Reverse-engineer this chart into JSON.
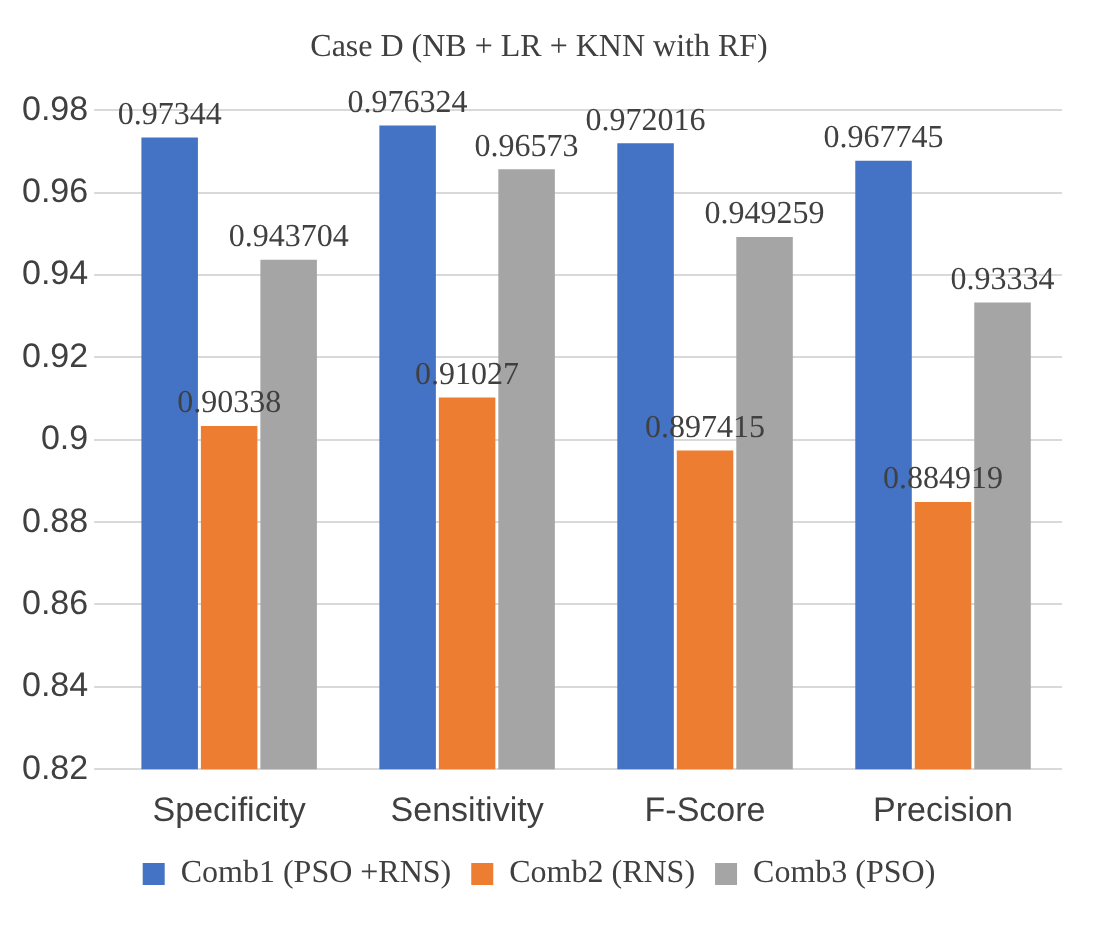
{
  "chart_data": {
    "type": "bar",
    "title": "Case D (NB + LR + KNN with RF)",
    "categories": [
      "Specificity",
      "Sensitivity",
      "F-Score",
      "Precision"
    ],
    "series": [
      {
        "name": "Comb1 (PSO +RNS)",
        "color": "#4472c4",
        "values": [
          0.97344,
          0.976324,
          0.972016,
          0.967745
        ]
      },
      {
        "name": "Comb2 (RNS)",
        "color": "#ed7d31",
        "values": [
          0.90338,
          0.91027,
          0.897415,
          0.884919
        ]
      },
      {
        "name": "Comb3 (PSO)",
        "color": "#a5a5a5",
        "values": [
          0.943704,
          0.96573,
          0.949259,
          0.93334
        ]
      }
    ],
    "ylim": [
      0.82,
      0.98
    ],
    "yticks": [
      0.82,
      0.84,
      0.86,
      0.88,
      0.9,
      0.92,
      0.94,
      0.96,
      0.98
    ],
    "grid": "y",
    "legend": "bottom",
    "data_labels": true
  }
}
